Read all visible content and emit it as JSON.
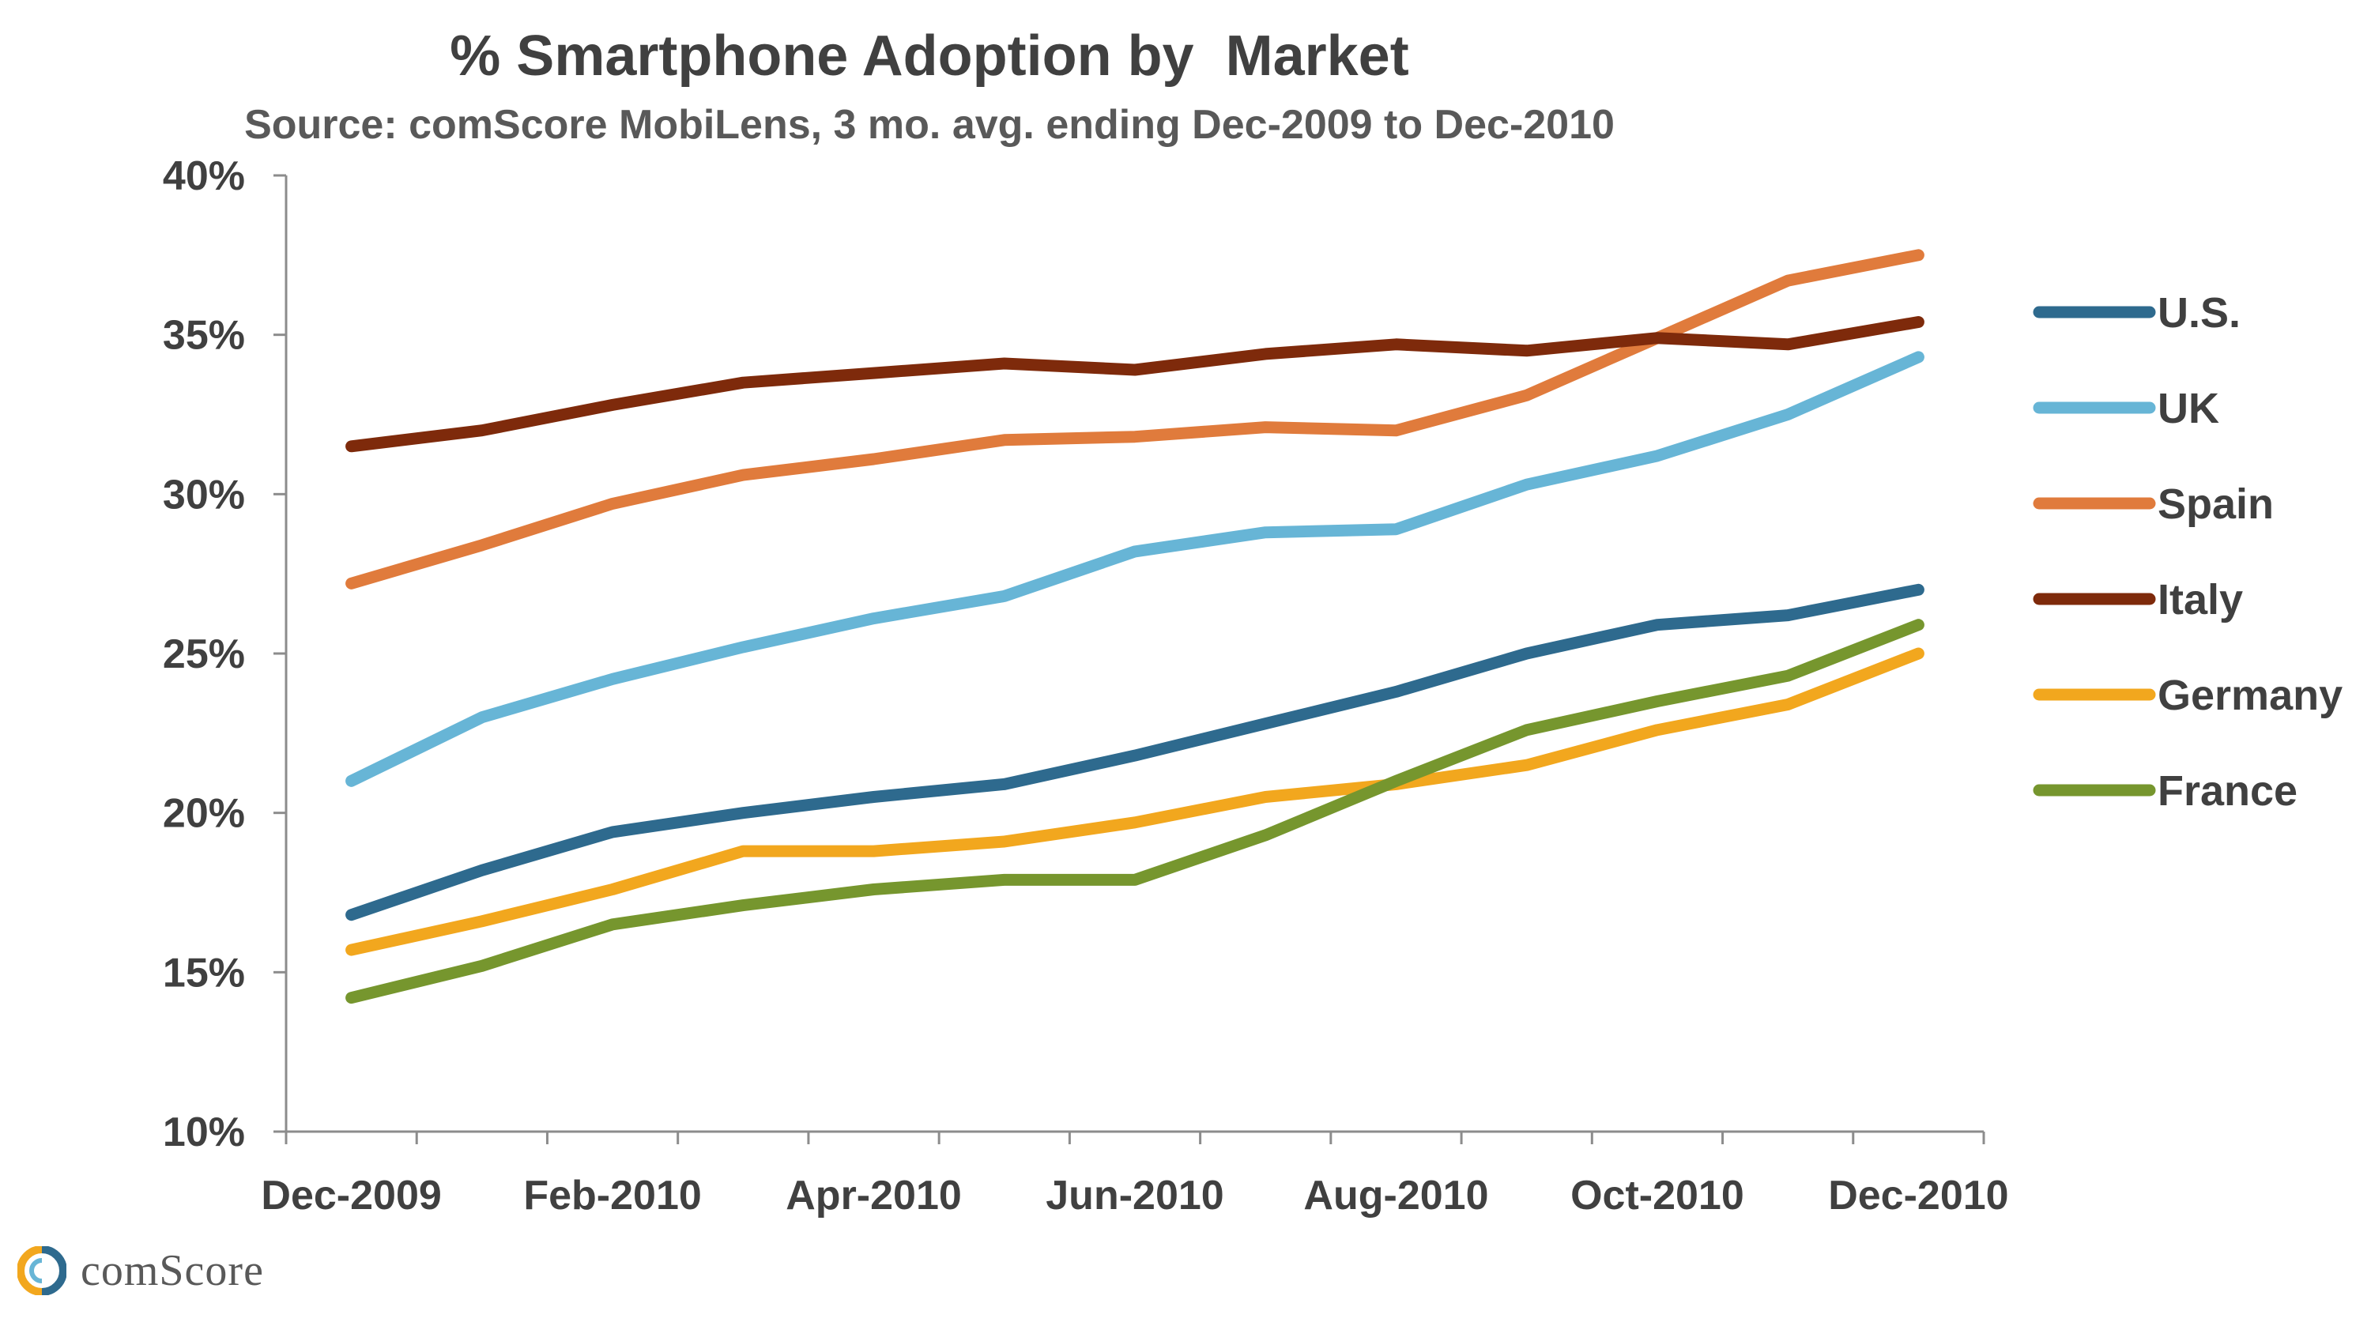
{
  "chart_data": {
    "type": "line",
    "title": "% Smartphone Adoption by  Market",
    "subtitle": "Source: comScore MobiLens, 3 mo. avg. ending Dec-2009 to Dec-2010",
    "x": [
      "Dec-2009",
      "Jan-2010",
      "Feb-2010",
      "Mar-2010",
      "Apr-2010",
      "May-2010",
      "Jun-2010",
      "Jul-2010",
      "Aug-2010",
      "Sep-2010",
      "Oct-2010",
      "Nov-2010",
      "Dec-2010"
    ],
    "x_tick_labels": [
      "Dec-2009",
      "Feb-2010",
      "Apr-2010",
      "Jun-2010",
      "Aug-2010",
      "Oct-2010",
      "Dec-2010"
    ],
    "y_tick_labels": [
      "10%",
      "15%",
      "20%",
      "25%",
      "30%",
      "35%",
      "40%"
    ],
    "ylim": [
      10,
      40
    ],
    "y_unit": "%",
    "grid": false,
    "legend_position": "right",
    "series": [
      {
        "name": "U.S.",
        "color": "#2E6A8E",
        "values": [
          16.8,
          18.2,
          19.4,
          20.0,
          20.5,
          20.9,
          21.8,
          22.8,
          23.8,
          25.0,
          25.9,
          26.2,
          27.0
        ]
      },
      {
        "name": "UK",
        "color": "#67B5D6",
        "values": [
          21.0,
          23.0,
          24.2,
          25.2,
          26.1,
          26.8,
          28.2,
          28.8,
          28.9,
          30.3,
          31.2,
          32.5,
          34.3
        ]
      },
      {
        "name": "Spain",
        "color": "#E07B3C",
        "values": [
          27.2,
          28.4,
          29.7,
          30.6,
          31.1,
          31.7,
          31.8,
          32.1,
          32.0,
          33.1,
          34.9,
          36.7,
          37.5
        ]
      },
      {
        "name": "Italy",
        "color": "#7E2A0B",
        "values": [
          31.5,
          32.0,
          32.8,
          33.5,
          33.8,
          34.1,
          33.9,
          34.4,
          34.7,
          34.5,
          34.9,
          34.7,
          35.4
        ]
      },
      {
        "name": "Germany",
        "color": "#F2A71E",
        "values": [
          15.7,
          16.6,
          17.6,
          18.8,
          18.8,
          19.1,
          19.7,
          20.5,
          20.9,
          21.5,
          22.6,
          23.4,
          25.0
        ]
      },
      {
        "name": "France",
        "color": "#76962E",
        "values": [
          14.2,
          15.2,
          16.5,
          17.1,
          17.6,
          17.9,
          17.9,
          19.3,
          21.0,
          22.6,
          23.5,
          24.3,
          25.9
        ]
      }
    ]
  },
  "logo": {
    "text": "comScore",
    "icon": "comscore-logo-icon"
  }
}
